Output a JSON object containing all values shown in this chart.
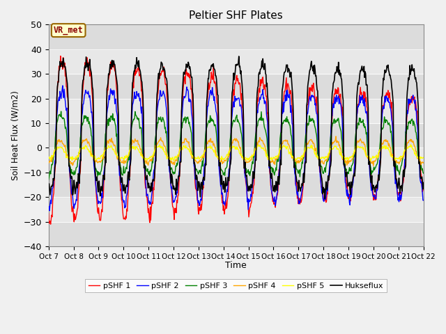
{
  "title": "Peltier SHF Plates",
  "ylabel": "Soil Heat Flux (W/m2)",
  "xlabel": "Time",
  "ylim": [
    -40,
    50
  ],
  "xlim": [
    0,
    15
  ],
  "annotation": "VR_met",
  "x_tick_labels": [
    "Oct 7",
    "Oct 8",
    "Oct 9",
    "Oct 10",
    "Oct 11",
    "Oct 12",
    "Oct 13",
    "Oct 14",
    "Oct 15",
    "Oct 16",
    "Oct 17",
    "Oct 18",
    "Oct 19",
    "Oct 20",
    "Oct 21",
    "Oct 22"
  ],
  "legend": [
    "pSHF 1",
    "pSHF 2",
    "pSHF 3",
    "pSHF 4",
    "pSHF 5",
    "Hukseflux"
  ],
  "colors": [
    "red",
    "blue",
    "green",
    "orange",
    "yellow",
    "black"
  ],
  "line_widths": [
    1.0,
    1.0,
    1.0,
    1.0,
    1.0,
    1.2
  ],
  "bg_color": "#dcdcdc",
  "band_colors": [
    "#dcdcdc",
    "#e8e8e8"
  ]
}
